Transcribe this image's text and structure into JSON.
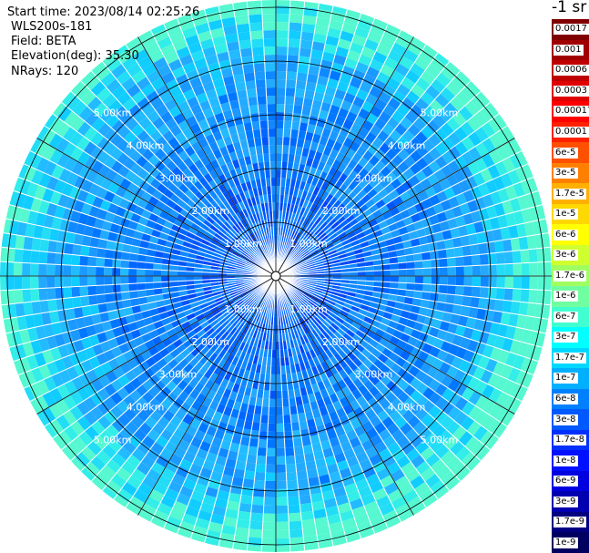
{
  "header": {
    "start_time": "Start time: 2023/08/14 02:25:26",
    "instrument": "WLS200s-181",
    "field": "Field: BETA",
    "elevation": "Elevation(deg): 35.30",
    "nrays": "NRays: 120"
  },
  "colorbar": {
    "units": "-1 sr",
    "labels": [
      "0.0017",
      "0.001",
      "0.0006",
      "0.0003",
      "0.00017",
      "0.0001",
      "6e-5",
      "3e-5",
      "1.7e-5",
      "1e-5",
      "6e-6",
      "3e-6",
      "1.7e-6",
      "1e-6",
      "6e-7",
      "3e-7",
      "1.7e-7",
      "1e-7",
      "6e-8",
      "3e-8",
      "1.7e-8",
      "1e-8",
      "6e-9",
      "3e-9",
      "1.7e-9",
      "1e-9"
    ],
    "colors": [
      "#800000",
      "#a00000",
      "#c00000",
      "#e00000",
      "#ff0000",
      "#ff2000",
      "#ff5000",
      "#ff8000",
      "#ffb000",
      "#ffd800",
      "#ffff00",
      "#d0ff30",
      "#a0ff60",
      "#70ffa0",
      "#40ffd0",
      "#00ffff",
      "#00d8ff",
      "#00b0ff",
      "#0080ff",
      "#0058ff",
      "#0030ff",
      "#0010ff",
      "#0000e0",
      "#0000b0",
      "#000080",
      "#000060"
    ]
  },
  "range_rings": {
    "labels": [
      "1.00km",
      "2.00km",
      "3.00km",
      "4.00km",
      "5.00km"
    ],
    "values_km": [
      1,
      2,
      3,
      4,
      5
    ]
  }
}
